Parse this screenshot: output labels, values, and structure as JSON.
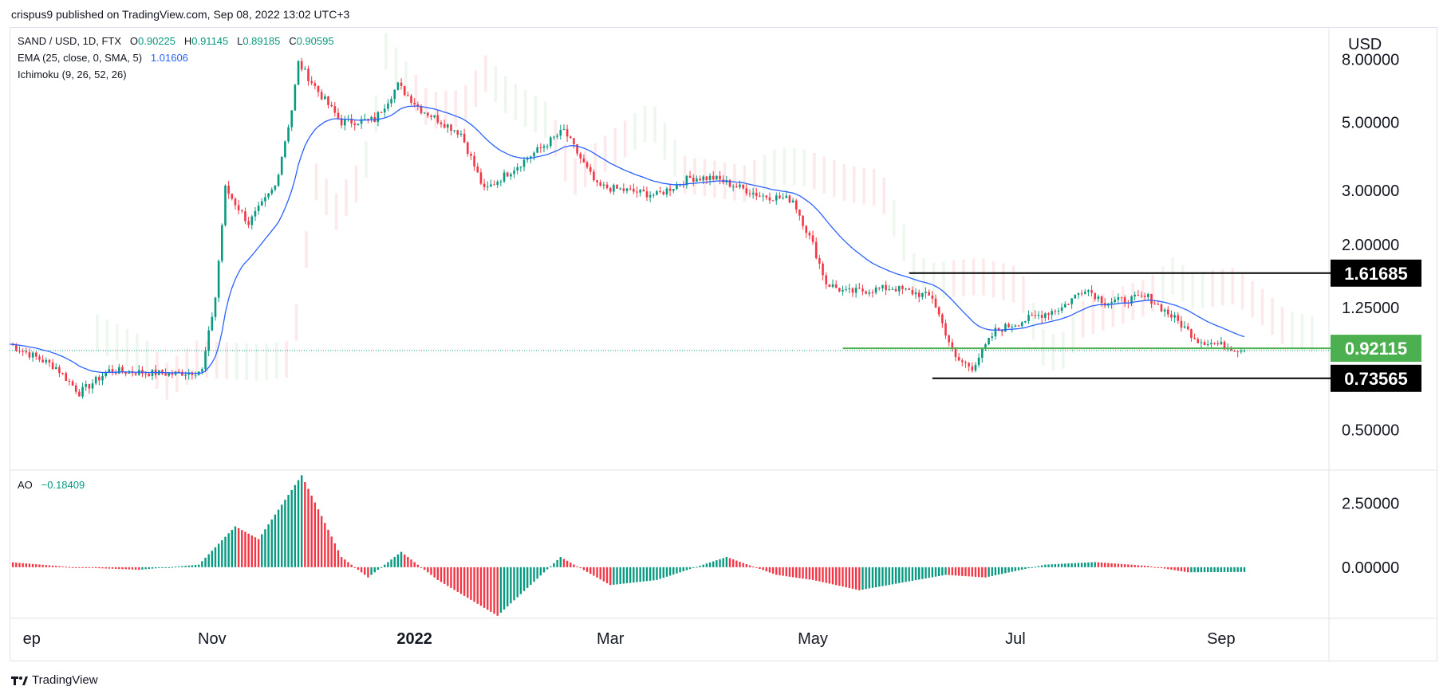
{
  "header": {
    "published": "crispus9 published on TradingView.com, Sep 08, 2022 13:02 UTC+3"
  },
  "legend": {
    "symbol": "SAND / USD, 1D, FTX",
    "o_label": "O",
    "o": "0.90225",
    "h_label": "H",
    "h": "0.91145",
    "l_label": "L",
    "l": "0.89185",
    "c_label": "C",
    "c": "0.90595",
    "ema_label": "EMA (25, close, 0, SMA, 5)",
    "ema": "1.01606",
    "ichimoku_label": "Ichimoku (9, 26, 52, 26)"
  },
  "ao_legend": {
    "label": "AO",
    "value": "−0.18409"
  },
  "footer": {
    "brand": "TradingView"
  },
  "colors": {
    "up": "#089981",
    "down": "#f23645",
    "ema": "#2962ff",
    "cloud_up": "#e8f5e9",
    "cloud_down": "#fde3e3",
    "support": "#4caf50",
    "level": "#000000"
  },
  "chart_data": [
    {
      "type": "candlestick",
      "title": "",
      "y_axis_unit": "USD",
      "y_scale": "log",
      "x_ticks": [
        "ep",
        "Nov",
        "2022",
        "Mar",
        "May",
        "Jul",
        "Sep"
      ],
      "y_ticks": [
        "8.00000",
        "5.00000",
        "3.00000",
        "2.00000",
        "1.25000",
        "0.50000"
      ],
      "y_tick_values": [
        8,
        5,
        3,
        2,
        1.25,
        0.5
      ],
      "ylim": [
        0.37,
        10.2
      ],
      "price_labels": [
        "1.61685",
        "0.92115",
        "0.73565"
      ],
      "horizontal_levels": [
        1.61685,
        0.92115,
        0.73565
      ],
      "last_close": 0.90595,
      "approx_close_path": [
        {
          "date": "2021-09-01",
          "close": 0.95
        },
        {
          "date": "2021-09-15",
          "close": 0.8
        },
        {
          "date": "2021-09-22",
          "close": 0.66
        },
        {
          "date": "2021-10-01",
          "close": 0.78
        },
        {
          "date": "2021-10-20",
          "close": 0.76
        },
        {
          "date": "2021-10-29",
          "close": 0.78
        },
        {
          "date": "2021-11-02",
          "close": 1.35
        },
        {
          "date": "2021-11-05",
          "close": 3.05
        },
        {
          "date": "2021-11-12",
          "close": 2.35
        },
        {
          "date": "2021-11-20",
          "close": 3.1
        },
        {
          "date": "2021-11-25",
          "close": 5.5
        },
        {
          "date": "2021-11-27",
          "close": 7.8
        },
        {
          "date": "2021-12-03",
          "close": 6.3
        },
        {
          "date": "2021-12-10",
          "close": 5.0
        },
        {
          "date": "2021-12-20",
          "close": 5.1
        },
        {
          "date": "2021-12-27",
          "close": 6.6
        },
        {
          "date": "2022-01-03",
          "close": 5.5
        },
        {
          "date": "2022-01-15",
          "close": 4.6
        },
        {
          "date": "2022-01-22",
          "close": 3.0
        },
        {
          "date": "2022-02-05",
          "close": 3.9
        },
        {
          "date": "2022-02-15",
          "close": 4.7
        },
        {
          "date": "2022-02-25",
          "close": 3.1
        },
        {
          "date": "2022-03-15",
          "close": 2.9
        },
        {
          "date": "2022-03-25",
          "close": 3.3
        },
        {
          "date": "2022-04-01",
          "close": 3.3
        },
        {
          "date": "2022-04-15",
          "close": 2.9
        },
        {
          "date": "2022-04-25",
          "close": 2.8
        },
        {
          "date": "2022-05-01",
          "close": 2.0
        },
        {
          "date": "2022-05-05",
          "close": 1.5
        },
        {
          "date": "2022-05-11",
          "close": 1.4
        },
        {
          "date": "2022-05-25",
          "close": 1.45
        },
        {
          "date": "2022-06-06",
          "close": 1.35
        },
        {
          "date": "2022-06-13",
          "close": 0.85
        },
        {
          "date": "2022-06-18",
          "close": 0.8
        },
        {
          "date": "2022-06-25",
          "close": 1.05
        },
        {
          "date": "2022-07-05",
          "close": 1.15
        },
        {
          "date": "2022-07-15",
          "close": 1.25
        },
        {
          "date": "2022-07-22",
          "close": 1.45
        },
        {
          "date": "2022-07-28",
          "close": 1.3
        },
        {
          "date": "2022-08-10",
          "close": 1.35
        },
        {
          "date": "2022-08-18",
          "close": 1.15
        },
        {
          "date": "2022-08-25",
          "close": 0.98
        },
        {
          "date": "2022-09-08",
          "close": 0.90595
        }
      ]
    },
    {
      "type": "bar",
      "title": "AO",
      "y_ticks": [
        "2.50000",
        "0.00000"
      ],
      "y_tick_values": [
        2.5,
        0
      ],
      "ylim": [
        -2.0,
        3.8
      ],
      "last_value": -0.18409,
      "approx_path": [
        {
          "date": "2021-09-01",
          "value": 0.2
        },
        {
          "date": "2021-09-20",
          "value": 0.0
        },
        {
          "date": "2021-10-10",
          "value": -0.1
        },
        {
          "date": "2021-10-28",
          "value": 0.1
        },
        {
          "date": "2021-11-08",
          "value": 1.6
        },
        {
          "date": "2021-11-15",
          "value": 1.1
        },
        {
          "date": "2021-11-28",
          "value": 3.6
        },
        {
          "date": "2021-12-10",
          "value": 0.4
        },
        {
          "date": "2021-12-18",
          "value": -0.4
        },
        {
          "date": "2021-12-28",
          "value": 0.6
        },
        {
          "date": "2022-01-08",
          "value": -0.5
        },
        {
          "date": "2022-01-26",
          "value": -1.9
        },
        {
          "date": "2022-02-14",
          "value": 0.4
        },
        {
          "date": "2022-03-01",
          "value": -0.7
        },
        {
          "date": "2022-03-15",
          "value": -0.5
        },
        {
          "date": "2022-04-05",
          "value": 0.4
        },
        {
          "date": "2022-04-20",
          "value": -0.3
        },
        {
          "date": "2022-05-01",
          "value": -0.5
        },
        {
          "date": "2022-05-15",
          "value": -0.9
        },
        {
          "date": "2022-06-10",
          "value": -0.3
        },
        {
          "date": "2022-06-22",
          "value": -0.4
        },
        {
          "date": "2022-07-10",
          "value": 0.1
        },
        {
          "date": "2022-07-25",
          "value": 0.2
        },
        {
          "date": "2022-08-10",
          "value": 0.05
        },
        {
          "date": "2022-08-22",
          "value": -0.2
        },
        {
          "date": "2022-09-08",
          "value": -0.18409
        }
      ]
    }
  ]
}
